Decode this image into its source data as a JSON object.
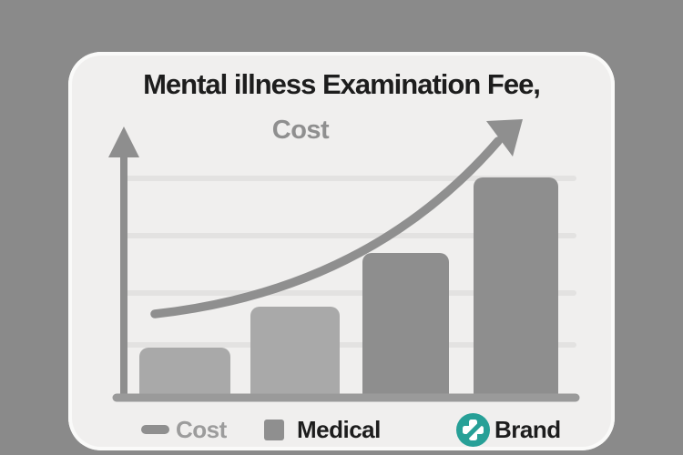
{
  "page": {
    "background": "#8a8a8a"
  },
  "card": {
    "background": "#f0efee",
    "title": "Mental illness Examination Fee,",
    "subtitle": "Cost"
  },
  "legend": {
    "items": [
      {
        "label": "Cost",
        "swatch": "gray-bar-swatch",
        "swatch_color": "#8f8f8f",
        "label_color": "#9c9c9c"
      },
      {
        "label": "Medical",
        "swatch": "gray-square-swatch",
        "swatch_color": "#8f8f8f",
        "label_color": "#1d1d1d"
      },
      {
        "label": "Brand",
        "swatch": "teal-medical-cross-logo",
        "swatch_color": "#27a097",
        "label_color": "#1d1d1d"
      }
    ]
  },
  "chart_data": {
    "type": "bar",
    "title": "Mental illness Examination Fee,",
    "subtitle": "Cost",
    "categories": [
      "bar-1",
      "bar-2",
      "bar-3",
      "bar-4"
    ],
    "values": [
      51,
      96,
      155,
      238
    ],
    "values_note": "relative bar heights in pixels; chart shows no numeric tick labels",
    "values_normalized": [
      0.21,
      0.4,
      0.65,
      1.0
    ],
    "bar_colors": [
      "#a9a9a9",
      "#a9a9a9",
      "#8e8e8e",
      "#8e8e8e"
    ],
    "xlabel": "",
    "ylabel": "",
    "axis_color": "#8e8e8e",
    "baseline_color": "#9a9a9a",
    "gridlines": {
      "count": 4,
      "color": "#e3e2e1",
      "visible": true
    },
    "annotations": [
      "thick curved upward trend arrow from lower-left to upper-right"
    ],
    "trend_arrow_color": "#8f8f8f",
    "legend_position": "bottom"
  }
}
